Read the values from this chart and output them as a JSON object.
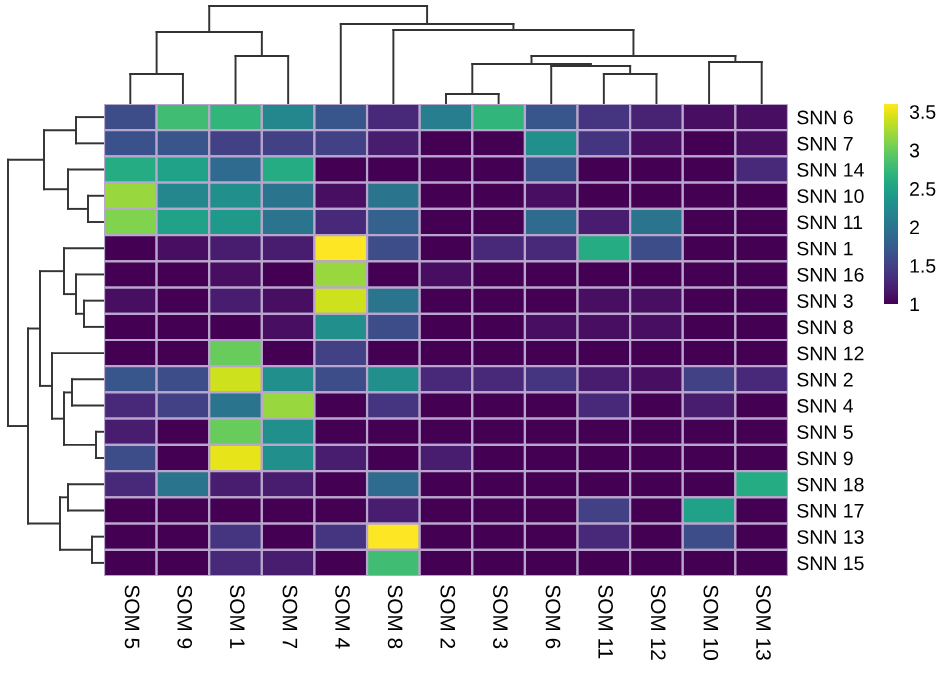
{
  "chart_data": {
    "type": "heatmap",
    "categories": [
      "SOM 5",
      "SOM 9",
      "SOM 1",
      "SOM 7",
      "SOM 4",
      "SOM 8",
      "SOM 2",
      "SOM 3",
      "SOM 6",
      "SOM 11",
      "SOM 12",
      "SOM 10",
      "SOM 13"
    ],
    "y_categories": [
      "SNN 6",
      "SNN 7",
      "SNN 14",
      "SNN 10",
      "SNN 11",
      "SNN 1",
      "SNN 16",
      "SNN 3",
      "SNN 8",
      "SNN 12",
      "SNN 2",
      "SNN 4",
      "SNN 5",
      "SNN 9",
      "SNN 18",
      "SNN 17",
      "SNN 13",
      "SNN 15"
    ],
    "cells": [
      [
        1.6,
        2.8,
        2.7,
        2.2,
        1.7,
        1.3,
        2.1,
        2.7,
        1.7,
        1.4,
        1.25,
        1.1,
        1.1
      ],
      [
        1.65,
        1.7,
        1.5,
        1.5,
        1.5,
        1.2,
        1.0,
        1.0,
        2.3,
        1.4,
        1.1,
        1.0,
        1.1
      ],
      [
        2.6,
        2.5,
        1.9,
        2.6,
        1.0,
        1.0,
        1.0,
        1.0,
        1.7,
        1.0,
        1.0,
        1.0,
        1.3
      ],
      [
        3.2,
        2.2,
        2.3,
        2.0,
        1.1,
        2.0,
        1.0,
        1.0,
        1.1,
        1.0,
        1.0,
        1.0,
        1.0
      ],
      [
        3.1,
        2.5,
        2.4,
        2.0,
        1.3,
        1.8,
        1.0,
        1.0,
        1.9,
        1.2,
        2.0,
        1.0,
        1.0
      ],
      [
        1.0,
        1.1,
        1.2,
        1.2,
        3.6,
        1.6,
        1.0,
        1.3,
        1.3,
        2.6,
        1.6,
        1.0,
        1.0
      ],
      [
        1.0,
        1.0,
        1.1,
        1.0,
        3.2,
        1.0,
        1.1,
        1.0,
        1.0,
        1.0,
        1.0,
        1.0,
        1.0
      ],
      [
        1.1,
        1.0,
        1.2,
        1.1,
        3.4,
        2.0,
        1.0,
        1.0,
        1.0,
        1.1,
        1.1,
        1.0,
        1.0
      ],
      [
        1.0,
        1.0,
        1.0,
        1.1,
        2.3,
        1.6,
        1.0,
        1.0,
        1.1,
        1.1,
        1.1,
        1.0,
        1.0
      ],
      [
        1.0,
        1.0,
        3.0,
        1.0,
        1.5,
        1.0,
        1.0,
        1.0,
        1.0,
        1.0,
        1.0,
        1.0,
        1.0
      ],
      [
        1.7,
        1.6,
        3.4,
        2.3,
        1.6,
        2.3,
        1.3,
        1.3,
        1.4,
        1.2,
        1.1,
        1.5,
        1.3
      ],
      [
        1.3,
        1.5,
        2.0,
        3.2,
        1.0,
        1.4,
        1.0,
        1.0,
        1.0,
        1.3,
        1.0,
        1.2,
        1.0
      ],
      [
        1.2,
        1.0,
        3.0,
        2.3,
        1.0,
        1.0,
        1.0,
        1.0,
        1.0,
        1.0,
        1.0,
        1.0,
        1.0
      ],
      [
        1.6,
        1.0,
        3.5,
        2.3,
        1.2,
        1.0,
        1.2,
        1.0,
        1.0,
        1.0,
        1.0,
        1.0,
        1.0
      ],
      [
        1.3,
        2.0,
        1.2,
        1.2,
        1.0,
        1.9,
        1.0,
        1.0,
        1.0,
        1.0,
        1.0,
        1.0,
        2.6
      ],
      [
        1.0,
        1.0,
        1.0,
        1.0,
        1.0,
        1.2,
        1.0,
        1.0,
        1.0,
        1.5,
        1.0,
        2.5,
        1.0
      ],
      [
        1.0,
        1.0,
        1.4,
        1.0,
        1.4,
        3.6,
        1.0,
        1.0,
        1.0,
        1.3,
        1.0,
        1.6,
        1.0
      ],
      [
        1.0,
        1.0,
        1.3,
        1.2,
        1.0,
        2.8,
        1.0,
        1.0,
        1.0,
        1.0,
        1.0,
        1.0,
        1.0
      ]
    ],
    "clim": [
      1,
      3.6
    ],
    "cticks": [
      1,
      1.5,
      2,
      2.5,
      3,
      3.5
    ]
  }
}
